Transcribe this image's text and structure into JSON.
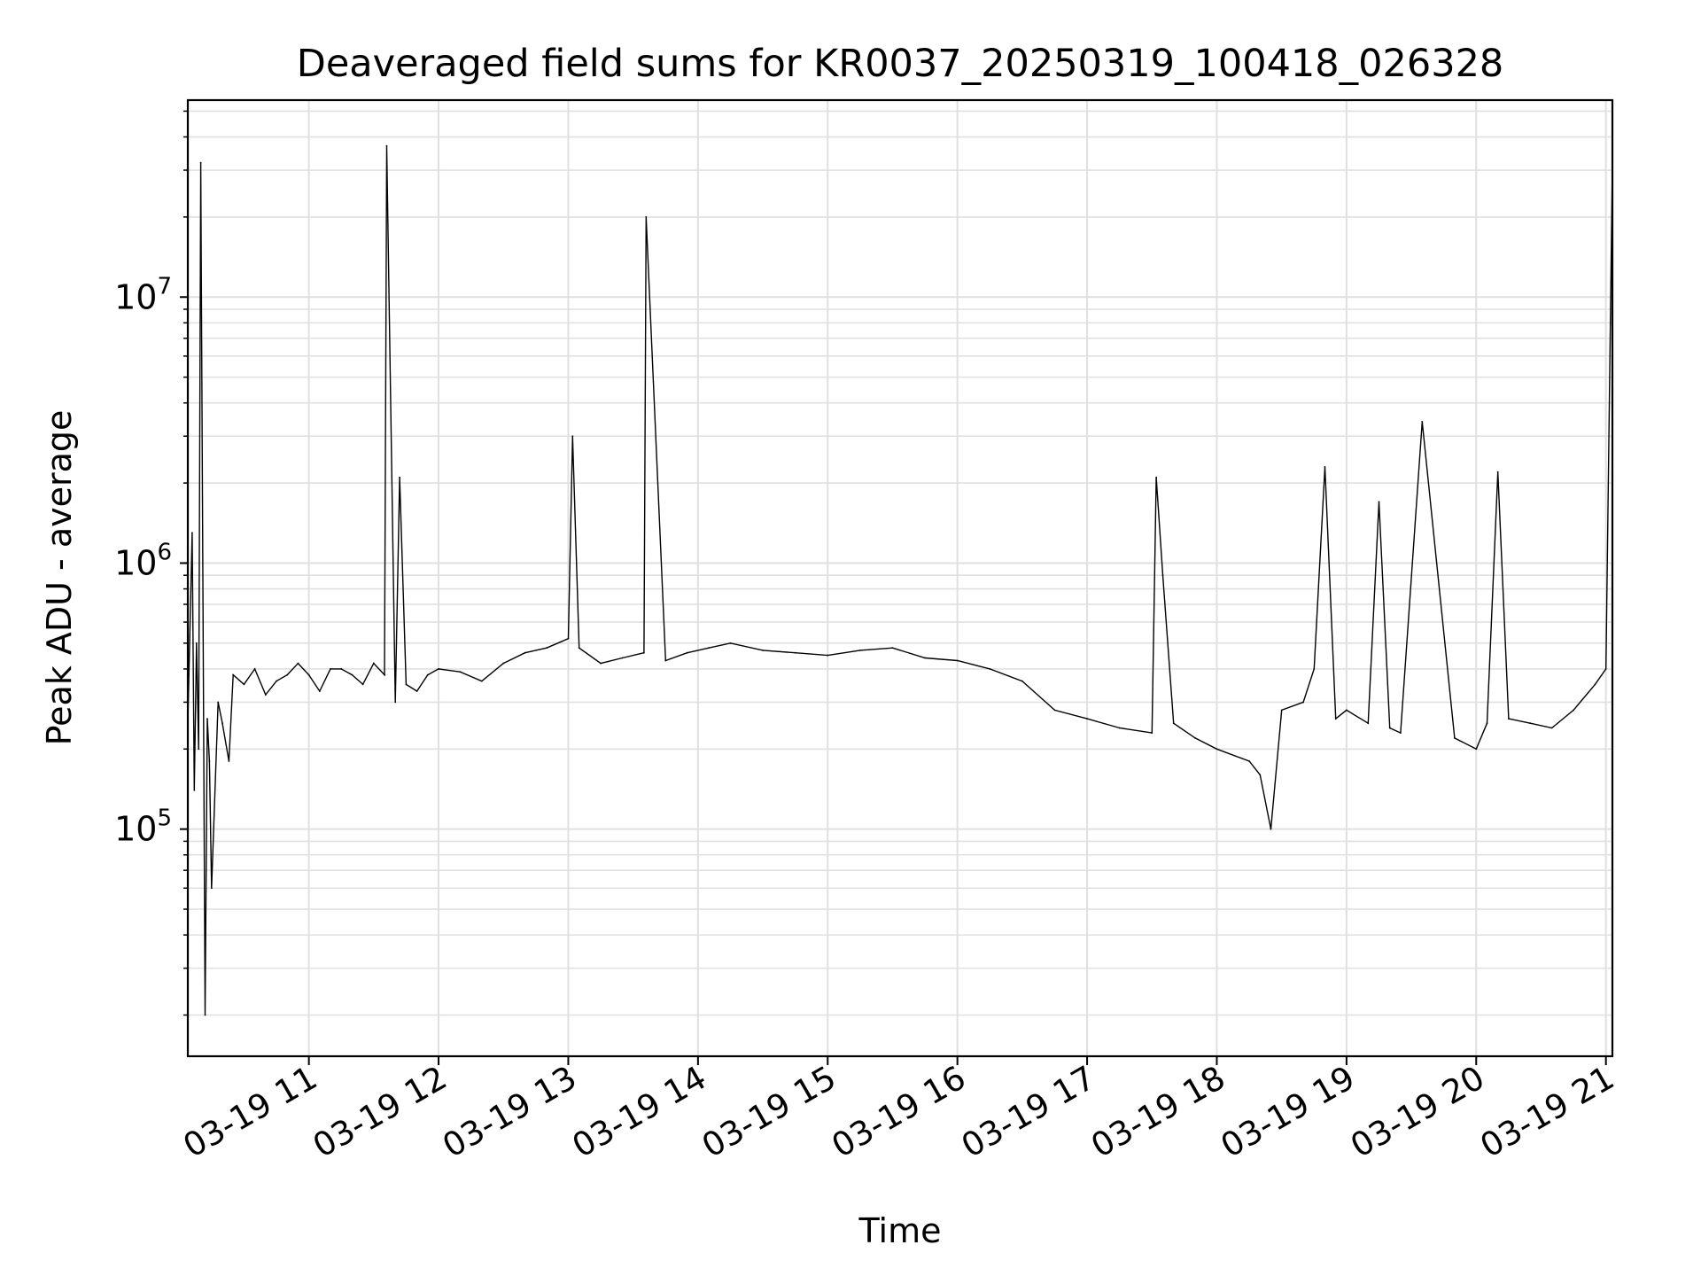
{
  "chart_data": {
    "type": "line",
    "title": "Deaveraged field sums for KR0037_20250319_100418_026328",
    "xlabel": "Time",
    "ylabel": "Peak ADU - average",
    "y_scale": "log",
    "ylim": [
      14000,
      55000000
    ],
    "xlim": [
      "2025-03-19 10:04",
      "2025-03-19 21:03"
    ],
    "x_ticks": [
      {
        "value": "2025-03-19 11:00",
        "label": "03-19 11"
      },
      {
        "value": "2025-03-19 12:00",
        "label": "03-19 12"
      },
      {
        "value": "2025-03-19 13:00",
        "label": "03-19 13"
      },
      {
        "value": "2025-03-19 14:00",
        "label": "03-19 14"
      },
      {
        "value": "2025-03-19 15:00",
        "label": "03-19 15"
      },
      {
        "value": "2025-03-19 16:00",
        "label": "03-19 16"
      },
      {
        "value": "2025-03-19 17:00",
        "label": "03-19 17"
      },
      {
        "value": "2025-03-19 18:00",
        "label": "03-19 18"
      },
      {
        "value": "2025-03-19 19:00",
        "label": "03-19 19"
      },
      {
        "value": "2025-03-19 20:00",
        "label": "03-19 20"
      },
      {
        "value": "2025-03-19 21:00",
        "label": "03-19 21"
      }
    ],
    "y_ticks": [
      {
        "value": 100000,
        "base": "10",
        "exponent": "5"
      },
      {
        "value": 1000000,
        "base": "10",
        "exponent": "6"
      },
      {
        "value": 10000000,
        "base": "10",
        "exponent": "7"
      }
    ],
    "grid": true,
    "line_color": "#000000",
    "grid_color": "#e0e0e0",
    "series": [
      {
        "x": [
          "2025-03-19 10:04",
          "2025-03-19 10:06",
          "2025-03-19 10:07",
          "2025-03-19 10:08",
          "2025-03-19 10:09",
          "2025-03-19 10:10",
          "2025-03-19 10:12",
          "2025-03-19 10:13",
          "2025-03-19 10:14",
          "2025-03-19 10:15",
          "2025-03-19 10:18",
          "2025-03-19 10:20",
          "2025-03-19 10:23",
          "2025-03-19 10:25",
          "2025-03-19 10:30",
          "2025-03-19 10:35",
          "2025-03-19 10:40",
          "2025-03-19 10:45",
          "2025-03-19 10:50",
          "2025-03-19 10:55",
          "2025-03-19 11:00",
          "2025-03-19 11:05",
          "2025-03-19 11:10",
          "2025-03-19 11:15",
          "2025-03-19 11:20",
          "2025-03-19 11:25",
          "2025-03-19 11:30",
          "2025-03-19 11:35",
          "2025-03-19 11:36",
          "2025-03-19 11:40",
          "2025-03-19 11:42",
          "2025-03-19 11:45",
          "2025-03-19 11:50",
          "2025-03-19 11:55",
          "2025-03-19 12:00",
          "2025-03-19 12:10",
          "2025-03-19 12:20",
          "2025-03-19 12:30",
          "2025-03-19 12:40",
          "2025-03-19 12:50",
          "2025-03-19 13:00",
          "2025-03-19 13:02",
          "2025-03-19 13:05",
          "2025-03-19 13:15",
          "2025-03-19 13:25",
          "2025-03-19 13:35",
          "2025-03-19 13:36",
          "2025-03-19 13:45",
          "2025-03-19 13:55",
          "2025-03-19 14:05",
          "2025-03-19 14:15",
          "2025-03-19 14:30",
          "2025-03-19 14:45",
          "2025-03-19 15:00",
          "2025-03-19 15:15",
          "2025-03-19 15:30",
          "2025-03-19 15:45",
          "2025-03-19 16:00",
          "2025-03-19 16:15",
          "2025-03-19 16:30",
          "2025-03-19 16:45",
          "2025-03-19 17:00",
          "2025-03-19 17:15",
          "2025-03-19 17:30",
          "2025-03-19 17:32",
          "2025-03-19 17:35",
          "2025-03-19 17:40",
          "2025-03-19 17:50",
          "2025-03-19 18:00",
          "2025-03-19 18:15",
          "2025-03-19 18:20",
          "2025-03-19 18:25",
          "2025-03-19 18:30",
          "2025-03-19 18:40",
          "2025-03-19 18:45",
          "2025-03-19 18:50",
          "2025-03-19 18:55",
          "2025-03-19 19:00",
          "2025-03-19 19:10",
          "2025-03-19 19:15",
          "2025-03-19 19:20",
          "2025-03-19 19:25",
          "2025-03-19 19:35",
          "2025-03-19 19:50",
          "2025-03-19 20:00",
          "2025-03-19 20:05",
          "2025-03-19 20:10",
          "2025-03-19 20:15",
          "2025-03-19 20:25",
          "2025-03-19 20:35",
          "2025-03-19 20:45",
          "2025-03-19 20:55",
          "2025-03-19 21:00",
          "2025-03-19 21:03"
        ],
        "y": [
          250000,
          1300000,
          140000,
          500000,
          200000,
          32000000,
          20000,
          260000,
          180000,
          60000,
          300000,
          250000,
          180000,
          380000,
          350000,
          400000,
          320000,
          360000,
          380000,
          420000,
          380000,
          330000,
          400000,
          400000,
          380000,
          350000,
          420000,
          380000,
          37000000,
          300000,
          2100000,
          350000,
          330000,
          380000,
          400000,
          390000,
          360000,
          420000,
          460000,
          480000,
          520000,
          3000000,
          480000,
          420000,
          440000,
          460000,
          20000000,
          430000,
          460000,
          480000,
          500000,
          470000,
          460000,
          450000,
          470000,
          480000,
          440000,
          430000,
          400000,
          360000,
          280000,
          260000,
          240000,
          230000,
          2100000,
          900000,
          250000,
          220000,
          200000,
          180000,
          160000,
          100000,
          280000,
          300000,
          400000,
          2300000,
          260000,
          280000,
          250000,
          1700000,
          240000,
          230000,
          3400000,
          220000,
          200000,
          250000,
          2200000,
          260000,
          250000,
          240000,
          280000,
          350000,
          400000,
          32000000
        ]
      }
    ]
  }
}
